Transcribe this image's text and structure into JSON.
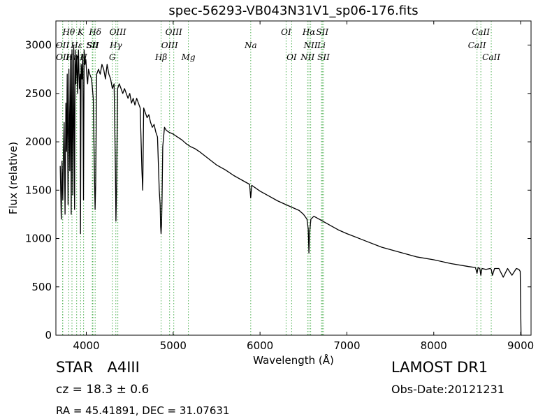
{
  "chart_data": {
    "type": "line",
    "title": "spec-56293-VB043N31V1_sp06-176.fits",
    "xlabel": "Wavelength (Å)",
    "ylabel": "Flux (relative)",
    "xlim": [
      3650,
      9120
    ],
    "ylim": [
      0,
      3250
    ],
    "xticks": [
      4000,
      5000,
      6000,
      7000,
      8000,
      9000
    ],
    "yticks": [
      0,
      500,
      1000,
      1500,
      2000,
      2500,
      3000
    ],
    "grid": false,
    "series_color": "#000000",
    "line_marker_color": "#4caf50",
    "series": [
      {
        "x": [
          3700,
          3712,
          3720,
          3730,
          3736,
          3745,
          3755,
          3765,
          3772,
          3780,
          3790,
          3800,
          3810,
          3820,
          3826,
          3835,
          3845,
          3855,
          3865,
          3872,
          3880,
          3890,
          3900,
          3910,
          3920,
          3930,
          3933,
          3940,
          3950,
          3960,
          3968,
          3975,
          3985,
          3995,
          4005,
          4015,
          4025,
          4040,
          4060,
          4080,
          4095,
          4101,
          4108,
          4120,
          4140,
          4160,
          4180,
          4200,
          4220,
          4240,
          4260,
          4280,
          4300,
          4320,
          4335,
          4341,
          4348,
          4360,
          4380,
          4400,
          4420,
          4440,
          4460,
          4480,
          4500,
          4520,
          4540,
          4560,
          4580,
          4600,
          4620,
          4640,
          4650,
          4660,
          4680,
          4700,
          4720,
          4740,
          4760,
          4780,
          4800,
          4820,
          4840,
          4850,
          4856,
          4861,
          4866,
          4872,
          4880,
          4900,
          4920,
          4950,
          5000,
          5050,
          5100,
          5150,
          5200,
          5250,
          5300,
          5400,
          5500,
          5600,
          5700,
          5800,
          5880,
          5893,
          5905,
          6000,
          6100,
          6200,
          6300,
          6400,
          6450,
          6500,
          6540,
          6555,
          6563,
          6570,
          6585,
          6620,
          6700,
          6800,
          6900,
          7000,
          7200,
          7400,
          7600,
          7800,
          8000,
          8200,
          8400,
          8480,
          8498,
          8510,
          8530,
          8542,
          8555,
          8600,
          8650,
          8662,
          8675,
          8700,
          8750,
          8800,
          8850,
          8900,
          8950,
          8980,
          8995,
          9000,
          9005,
          9010,
          9015
        ],
        "y": [
          1750,
          1200,
          1800,
          1400,
          1850,
          2200,
          1250,
          2400,
          1900,
          2700,
          1350,
          2750,
          1700,
          2900,
          1250,
          2950,
          1450,
          3000,
          1300,
          2950,
          2600,
          2900,
          2500,
          2950,
          2550,
          2700,
          1050,
          2800,
          2650,
          2900,
          1400,
          2950,
          2800,
          2850,
          2700,
          2600,
          2750,
          2700,
          2650,
          2450,
          1600,
          1300,
          1550,
          2700,
          2750,
          2700,
          2800,
          2750,
          2650,
          2800,
          2700,
          2650,
          2550,
          2600,
          1700,
          1180,
          1500,
          2550,
          2600,
          2550,
          2500,
          2550,
          2500,
          2450,
          2500,
          2400,
          2450,
          2380,
          2450,
          2400,
          2350,
          1700,
          1500,
          2350,
          2300,
          2250,
          2280,
          2200,
          2150,
          2180,
          2100,
          2050,
          1500,
          1350,
          1120,
          1050,
          1150,
          1400,
          1950,
          2150,
          2120,
          2100,
          2080,
          2050,
          2020,
          1980,
          1950,
          1930,
          1900,
          1830,
          1760,
          1710,
          1650,
          1600,
          1560,
          1420,
          1550,
          1490,
          1440,
          1390,
          1350,
          1310,
          1290,
          1250,
          1200,
          1100,
          850,
          1050,
          1200,
          1230,
          1190,
          1140,
          1090,
          1050,
          980,
          910,
          860,
          810,
          780,
          740,
          710,
          700,
          640,
          700,
          690,
          620,
          690,
          680,
          690,
          680,
          620,
          690,
          690,
          600,
          690,
          620,
          690,
          680,
          660,
          300,
          0,
          0,
          0
        ]
      }
    ],
    "line_markers": [
      {
        "name": "OII",
        "x": 3727,
        "row": 2
      },
      {
        "name": "OII",
        "x": 3729,
        "row": 3
      },
      {
        "name": "Hθ",
        "x": 3798,
        "row": 1
      },
      {
        "name": "Hη",
        "x": 3835,
        "row": 3
      },
      {
        "name": "Hε",
        "x": 3889,
        "row": 2
      },
      {
        "name": "K",
        "x": 3934,
        "row": 1
      },
      {
        "name": "H",
        "x": 3969,
        "row": 3
      },
      {
        "name": "SII",
        "x": 4069,
        "row": 2
      },
      {
        "name": "SII",
        "x": 4076,
        "row": 2
      },
      {
        "name": "Hδ",
        "x": 4102,
        "row": 1
      },
      {
        "name": "G",
        "x": 4300,
        "row": 3
      },
      {
        "name": "Hγ",
        "x": 4340,
        "row": 2
      },
      {
        "name": "OIII",
        "x": 4363,
        "row": 1
      },
      {
        "name": "Hβ",
        "x": 4861,
        "row": 3
      },
      {
        "name": "OIII",
        "x": 4959,
        "row": 2
      },
      {
        "name": "OIII",
        "x": 5007,
        "row": 1
      },
      {
        "name": "Mg",
        "x": 5175,
        "row": 3
      },
      {
        "name": "Na",
        "x": 5893,
        "row": 2
      },
      {
        "name": "OI",
        "x": 6300,
        "row": 1
      },
      {
        "name": "OI",
        "x": 6364,
        "row": 3
      },
      {
        "name": "NII",
        "x": 6548,
        "row": 3
      },
      {
        "name": "Hα",
        "x": 6563,
        "row": 1
      },
      {
        "name": "NII",
        "x": 6583,
        "row": 2
      },
      {
        "name": "Li",
        "x": 6707,
        "row": 2
      },
      {
        "name": "SII",
        "x": 6717,
        "row": 1
      },
      {
        "name": "SII",
        "x": 6731,
        "row": 3
      },
      {
        "name": "CaII",
        "x": 8498,
        "row": 2
      },
      {
        "name": "CaII",
        "x": 8542,
        "row": 1
      },
      {
        "name": "CaII",
        "x": 8662,
        "row": 3
      }
    ]
  },
  "info": {
    "object_class": "STAR   A4III",
    "survey": "LAMOST DR1",
    "redshift": "cz = 18.3 ± 0.6",
    "obs_date": "Obs-Date:20121231",
    "coordinates": "RA = 45.41891, DEC = 31.07631"
  }
}
